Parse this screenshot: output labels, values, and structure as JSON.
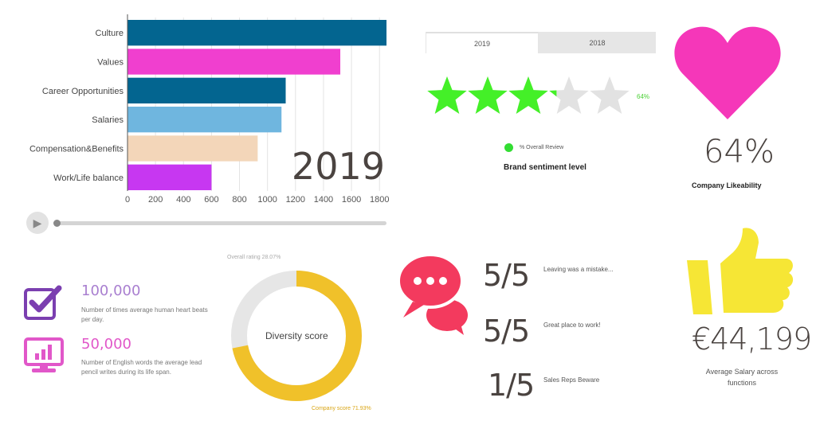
{
  "chart_data": {
    "type": "bar",
    "orientation": "horizontal",
    "categories": [
      "Culture",
      "Values",
      "Career Opportunities",
      "Salaries",
      "Compensation&Benefits",
      "Work/Life balance"
    ],
    "values": [
      1850,
      1520,
      1130,
      1100,
      930,
      600
    ],
    "colors": [
      "#036590",
      "#f03fcf",
      "#036590",
      "#6fb6df",
      "#f3d6b9",
      "#c737f1"
    ],
    "xticks": [
      0,
      200,
      400,
      600,
      800,
      1000,
      1200,
      1400,
      1600,
      1800
    ],
    "xlim": [
      0,
      1850
    ],
    "year_label": "2019",
    "grid": true
  },
  "player": {
    "play_icon": "▶"
  },
  "sentiment": {
    "tabs": [
      "2019",
      "2018"
    ],
    "active_tab": "2019",
    "stars_total": 5,
    "stars_value": 3.2,
    "star_color": "#44f028",
    "star_empty_color": "#e2e2e2",
    "percent": "64%",
    "legend": "% Overall Review",
    "title": "Brand sentiment level"
  },
  "likeability": {
    "value": "64%",
    "label": "Company Likeability",
    "heart_color": "#f537b9"
  },
  "stats": [
    {
      "number": "100,000",
      "desc": "Number of times average human heart beats per day.",
      "color": "#a97fd0",
      "icon": "checkbox-icon"
    },
    {
      "number": "50,000",
      "desc": "Number of English words the average lead pencil writes during its life span.",
      "color": "#e157c9",
      "icon": "monitor-chart-icon"
    }
  ],
  "diversity": {
    "type": "donut",
    "center_label": "Diversity score",
    "overall_label": "Overall rating 28.07%",
    "company_label": "Company score 71.93%",
    "company_value": 71.93,
    "overall_value": 28.07,
    "company_color": "#f0c12a",
    "overall_color": "#e6e6e6"
  },
  "reviews": [
    {
      "score": "5/5",
      "text": "Leaving was a mistake..."
    },
    {
      "score": "5/5",
      "text": "Great place to work!"
    },
    {
      "score": "1/5",
      "text": "Sales Reps Beware"
    }
  ],
  "salary": {
    "value": "€44,199",
    "label": "Average Salary across functions",
    "thumb_color": "#f6e635"
  }
}
